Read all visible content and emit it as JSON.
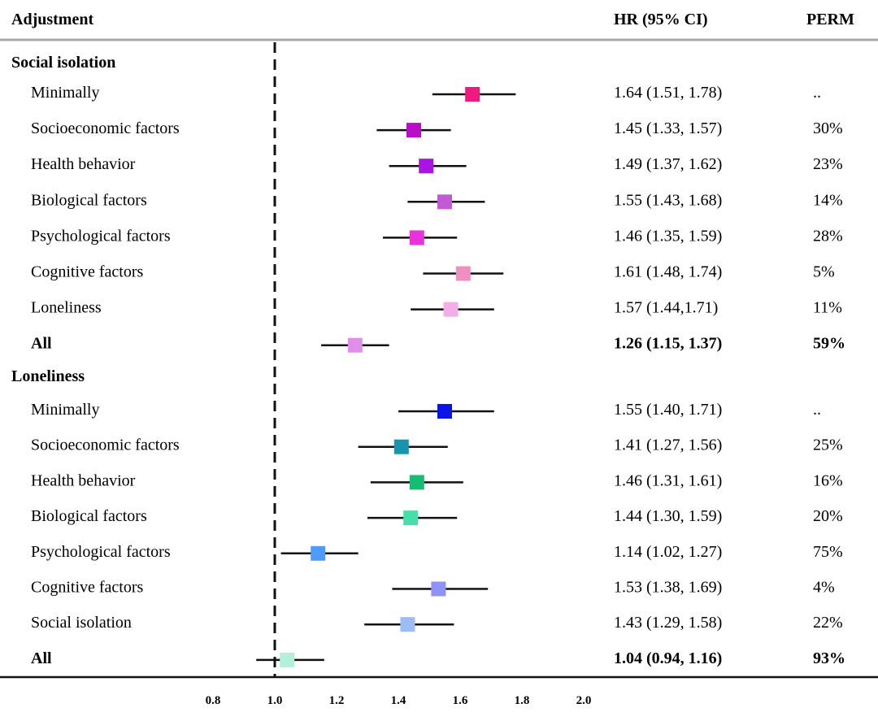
{
  "header": {
    "adjustment": "Adjustment",
    "hr_ci": "HR (95% CI)",
    "perm": "PERM"
  },
  "chart_data": {
    "type": "forest",
    "reference_line": 1.0,
    "xlim": [
      0.8,
      2.0
    ],
    "xticks": [
      "0.8",
      "1.0",
      "1.2",
      "1.4",
      "1.6",
      "1.8",
      "2.0"
    ],
    "groups": [
      {
        "title": "Social isolation",
        "rows": [
          {
            "label": "Minimally",
            "hr": 1.64,
            "lo": 1.51,
            "hi": 1.78,
            "hr_text": "1.64 (1.51, 1.78)",
            "perm": "..",
            "color": "#ef1a7e",
            "bold": false
          },
          {
            "label": "Socioeconomic factors",
            "hr": 1.45,
            "lo": 1.33,
            "hi": 1.57,
            "hr_text": "1.45 (1.33, 1.57)",
            "perm": "30%",
            "color": "#b80fc6",
            "bold": false
          },
          {
            "label": "Health behavior",
            "hr": 1.49,
            "lo": 1.37,
            "hi": 1.62,
            "hr_text": "1.49 (1.37, 1.62)",
            "perm": "23%",
            "color": "#a815e0",
            "bold": false
          },
          {
            "label": "Biological factors",
            "hr": 1.55,
            "lo": 1.43,
            "hi": 1.68,
            "hr_text": "1.55 (1.43, 1.68)",
            "perm": "14%",
            "color": "#c25ad6",
            "bold": false
          },
          {
            "label": "Psychological factors",
            "hr": 1.46,
            "lo": 1.35,
            "hi": 1.59,
            "hr_text": "1.46 (1.35, 1.59)",
            "perm": "28%",
            "color": "#e733d8",
            "bold": false
          },
          {
            "label": "Cognitive factors",
            "hr": 1.61,
            "lo": 1.48,
            "hi": 1.74,
            "hr_text": "1.61 (1.48, 1.74)",
            "perm": "5%",
            "color": "#f08fc0",
            "bold": false
          },
          {
            "label": "Loneliness",
            "hr": 1.57,
            "lo": 1.44,
            "hi": 1.71,
            "hr_text": "1.57 (1.44,1.71)",
            "perm": "11%",
            "color": "#f3aee6",
            "bold": false
          },
          {
            "label": "All",
            "hr": 1.26,
            "lo": 1.15,
            "hi": 1.37,
            "hr_text": "1.26 (1.15, 1.37)",
            "perm": "59%",
            "color": "#df8ee9",
            "bold": true
          }
        ]
      },
      {
        "title": "Loneliness",
        "rows": [
          {
            "label": "Minimally",
            "hr": 1.55,
            "lo": 1.4,
            "hi": 1.71,
            "hr_text": "1.55 (1.40, 1.71)",
            "perm": "..",
            "color": "#0a16e6",
            "bold": false
          },
          {
            "label": "Socioeconomic factors",
            "hr": 1.41,
            "lo": 1.27,
            "hi": 1.56,
            "hr_text": "1.41 (1.27, 1.56)",
            "perm": "25%",
            "color": "#1694b0",
            "bold": false
          },
          {
            "label": "Health behavior",
            "hr": 1.46,
            "lo": 1.31,
            "hi": 1.61,
            "hr_text": "1.46 (1.31, 1.61)",
            "perm": "16%",
            "color": "#16bc74",
            "bold": false
          },
          {
            "label": "Biological factors",
            "hr": 1.44,
            "lo": 1.3,
            "hi": 1.59,
            "hr_text": "1.44 (1.30, 1.59)",
            "perm": "20%",
            "color": "#45e0aa",
            "bold": false
          },
          {
            "label": "Psychological factors",
            "hr": 1.14,
            "lo": 1.02,
            "hi": 1.27,
            "hr_text": "1.14 (1.02, 1.27)",
            "perm": "75%",
            "color": "#4e9cf7",
            "bold": false
          },
          {
            "label": "Cognitive factors",
            "hr": 1.53,
            "lo": 1.38,
            "hi": 1.69,
            "hr_text": "1.53 (1.38, 1.69)",
            "perm": "4%",
            "color": "#8f93f7",
            "bold": false
          },
          {
            "label": "Social isolation",
            "hr": 1.43,
            "lo": 1.29,
            "hi": 1.58,
            "hr_text": "1.43 (1.29, 1.58)",
            "perm": "22%",
            "color": "#9bbdf3",
            "bold": false
          },
          {
            "label": "All",
            "hr": 1.04,
            "lo": 0.94,
            "hi": 1.16,
            "hr_text": "1.04 (0.94, 1.16)",
            "perm": "93%",
            "color": "#b3f0da",
            "bold": true
          }
        ]
      }
    ]
  }
}
